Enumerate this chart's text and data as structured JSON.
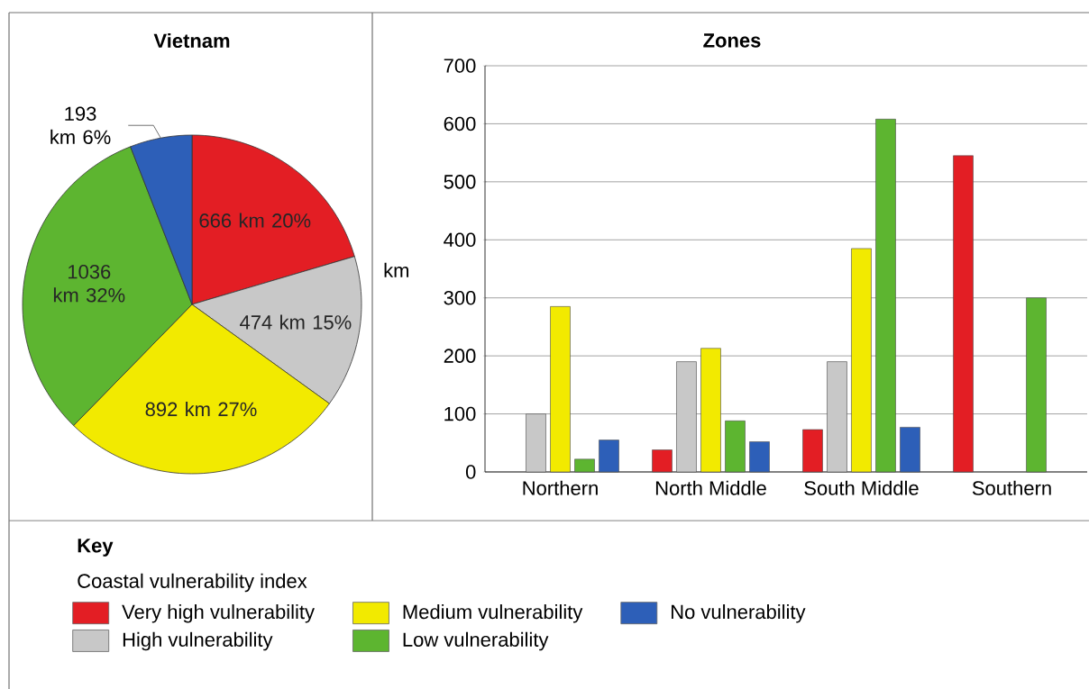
{
  "chart_data": [
    {
      "type": "pie",
      "title": "Vietnam",
      "categories": [
        null,
        null,
        null,
        null,
        null
      ],
      "values": [
        666,
        474,
        892,
        1036,
        193
      ],
      "colors": [
        "#e31e24",
        "#c8c8c8",
        "#f2ea00",
        "#5db530",
        "#2d5fb8"
      ],
      "value_labels": [
        "666 km 20%",
        "474 km 15%",
        "892 km 27%",
        "1036 km 32%",
        "193 km 6%"
      ]
    },
    {
      "type": "bar",
      "title": "Zones",
      "ylabel": "km",
      "categories": [
        "Northern",
        "North Middle",
        "South Middle",
        "Southern"
      ],
      "ylim": [
        0,
        700
      ],
      "yticks": [
        0,
        100,
        200,
        300,
        400,
        500,
        600,
        700
      ],
      "grid": "y",
      "legend": "bottom",
      "legend_title": "Coastal vulnerability index",
      "annotations": [
        "Key"
      ],
      "series": [
        {
          "name": "Very high vulnerability",
          "color": "#e31e24",
          "values": [
            null,
            38,
            73,
            545
          ]
        },
        {
          "name": "High vulnerability",
          "color": "#c8c8c8",
          "values": [
            100,
            190,
            190,
            null
          ]
        },
        {
          "name": "Medium vulnerability",
          "color": "#f2ea00",
          "values": [
            285,
            213,
            385,
            null
          ]
        },
        {
          "name": "Low vulnerability",
          "color": "#5db530",
          "values": [
            22,
            88,
            608,
            300
          ]
        },
        {
          "name": "No vulnerability",
          "color": "#2d5fb8",
          "values": [
            55,
            52,
            77,
            null
          ]
        }
      ]
    }
  ]
}
